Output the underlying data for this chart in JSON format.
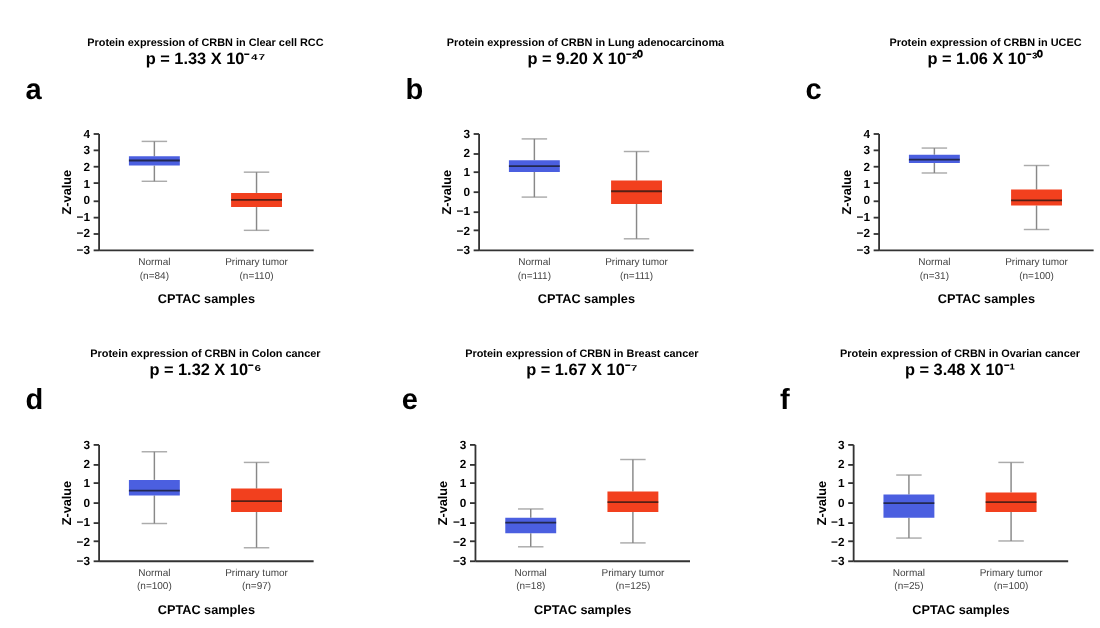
{
  "chart_data": [
    {
      "type": "box",
      "title": "Protein expression of CRBN in Clear cell RCC",
      "subtitle": "p = 1.33 X 10⁻⁴⁷",
      "xlabel": "CPTAC samples",
      "ylabel": "Z-value",
      "annotations": [
        "a"
      ],
      "categories": [
        "Normal\n(n=84)",
        "Primary tumor\n(n=110)"
      ],
      "colors": [
        "#4b5fe0",
        "#f2401e"
      ],
      "ylim": [
        -3,
        4
      ],
      "yticks": [
        -3,
        -2,
        -1,
        0,
        1,
        2,
        3,
        4
      ],
      "grid": false,
      "boxes": [
        {
          "low": 1.1,
          "q1": 2.05,
          "median": 2.35,
          "q3": 2.6,
          "high": 3.5
        },
        {
          "low": -1.85,
          "q1": -0.45,
          "median": -0.02,
          "q3": 0.4,
          "high": 1.65
        }
      ]
    },
    {
      "type": "box",
      "title": "Protein expression of CRBN in Lung adenocarcinoma",
      "subtitle": "p = 9.20 X 10⁻²⁰",
      "xlabel": "CPTAC samples",
      "ylabel": "Z-value",
      "annotations": [
        "b"
      ],
      "categories": [
        "Normal\n(n=111)",
        "Primary tumor\n(n=111)"
      ],
      "colors": [
        "#4b5fe0",
        "#f2401e"
      ],
      "ylim": [
        -3,
        3
      ],
      "yticks": [
        -3,
        -2,
        -1,
        0,
        1,
        2,
        3
      ],
      "grid": false,
      "boxes": [
        {
          "low": -0.3,
          "q1": 1.0,
          "median": 1.3,
          "q3": 1.6,
          "high": 2.7
        },
        {
          "low": -2.45,
          "q1": -0.65,
          "median": 0.0,
          "q3": 0.55,
          "high": 2.05
        }
      ]
    },
    {
      "type": "box",
      "title": "Protein expression of CRBN in UCEC",
      "subtitle": "p = 1.06 X 10⁻³⁰",
      "xlabel": "CPTAC samples",
      "ylabel": "Z-value",
      "annotations": [
        "c"
      ],
      "categories": [
        "Normal\n(n=31)",
        "Primary tumor\n(n=100)"
      ],
      "colors": [
        "#4b5fe0",
        "#f2401e"
      ],
      "ylim": [
        -3,
        4
      ],
      "yticks": [
        -3,
        -2,
        -1,
        0,
        1,
        2,
        3,
        4
      ],
      "grid": false,
      "boxes": [
        {
          "low": 1.6,
          "q1": 2.2,
          "median": 2.4,
          "q3": 2.7,
          "high": 3.1
        },
        {
          "low": -1.8,
          "q1": -0.35,
          "median": -0.05,
          "q3": 0.6,
          "high": 2.05
        }
      ]
    },
    {
      "type": "box",
      "title": "Protein expression of CRBN in Colon cancer",
      "subtitle": "p = 1.32 X 10⁻⁶",
      "xlabel": "CPTAC samples",
      "ylabel": "Z-value",
      "annotations": [
        "d"
      ],
      "categories": [
        "Normal\n(n=100)",
        "Primary tumor\n(n=97)"
      ],
      "colors": [
        "#4b5fe0",
        "#f2401e"
      ],
      "ylim": [
        -3,
        3
      ],
      "yticks": [
        -3,
        -2,
        -1,
        0,
        1,
        2,
        3
      ],
      "grid": false,
      "boxes": [
        {
          "low": -1.1,
          "q1": 0.35,
          "median": 0.6,
          "q3": 1.15,
          "high": 2.6
        },
        {
          "low": -2.35,
          "q1": -0.5,
          "median": 0.05,
          "q3": 0.7,
          "high": 2.05
        }
      ]
    },
    {
      "type": "box",
      "title": "Protein expression of CRBN in Breast cancer",
      "subtitle": "p = 1.67 X 10⁻⁷",
      "xlabel": "CPTAC samples",
      "ylabel": "Z-value",
      "annotations": [
        "e"
      ],
      "categories": [
        "Normal\n(n=18)",
        "Primary tumor\n(n=125)"
      ],
      "colors": [
        "#4b5fe0",
        "#f2401e"
      ],
      "ylim": [
        -3,
        3
      ],
      "yticks": [
        -3,
        -2,
        -1,
        0,
        1,
        2,
        3
      ],
      "grid": false,
      "boxes": [
        {
          "low": -2.3,
          "q1": -1.6,
          "median": -1.05,
          "q3": -0.8,
          "high": -0.35
        },
        {
          "low": -2.1,
          "q1": -0.5,
          "median": 0.0,
          "q3": 0.55,
          "high": 2.2
        }
      ]
    },
    {
      "type": "box",
      "title": "Protein expression of CRBN in Ovarian cancer",
      "subtitle": "p = 3.48 X 10⁻¹",
      "xlabel": "CPTAC samples",
      "ylabel": "Z-value",
      "annotations": [
        "f"
      ],
      "categories": [
        "Normal\n(n=25)",
        "Primary tumor\n(n=100)"
      ],
      "colors": [
        "#4b5fe0",
        "#f2401e"
      ],
      "ylim": [
        -3,
        3
      ],
      "yticks": [
        -3,
        -2,
        -1,
        0,
        1,
        2,
        3
      ],
      "grid": false,
      "boxes": [
        {
          "low": -1.85,
          "q1": -0.8,
          "median": -0.05,
          "q3": 0.4,
          "high": 1.4
        },
        {
          "low": -2.0,
          "q1": -0.5,
          "median": 0.0,
          "q3": 0.5,
          "high": 2.05
        }
      ]
    }
  ]
}
